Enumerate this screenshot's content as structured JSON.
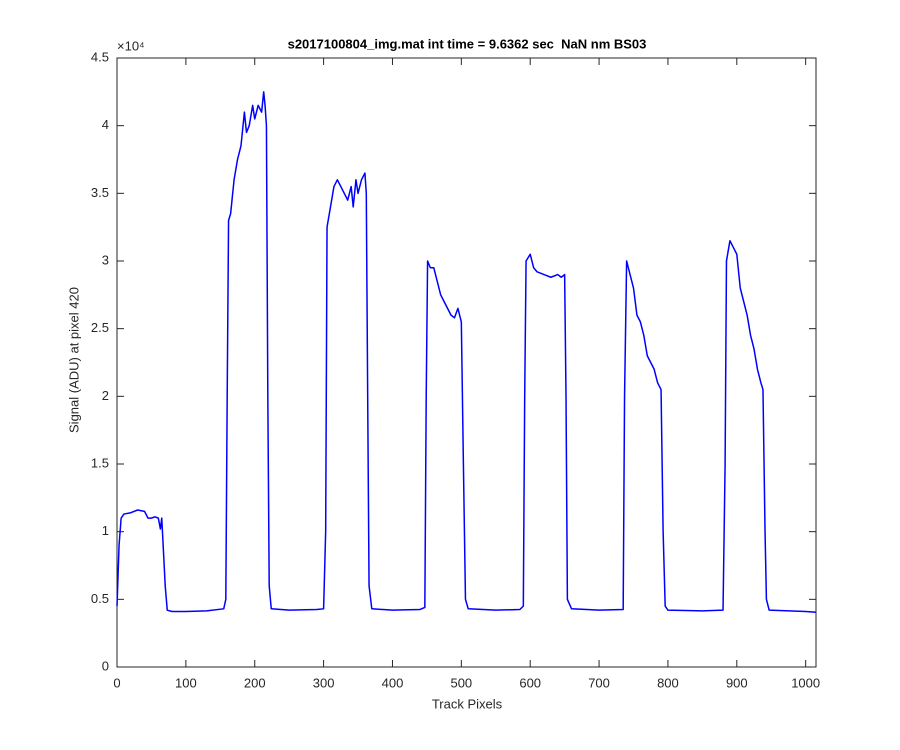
{
  "chart_data": {
    "type": "line",
    "title": "s2017100804_img.mat int time = 9.6362 sec  NaN nm BS03",
    "x_label": "Track Pixels",
    "y_label": "Signal (ADU) at pixel 420",
    "y_exponent_label": "×10⁴",
    "xlim": [
      0,
      1015
    ],
    "ylim": [
      0,
      45000
    ],
    "xticks": [
      0,
      100,
      200,
      300,
      400,
      500,
      600,
      700,
      800,
      900,
      1000
    ],
    "yticks": [
      {
        "value": 0,
        "label": "0"
      },
      {
        "value": 5000,
        "label": "0.5"
      },
      {
        "value": 10000,
        "label": "1"
      },
      {
        "value": 15000,
        "label": "1.5"
      },
      {
        "value": 20000,
        "label": "2"
      },
      {
        "value": 25000,
        "label": "2.5"
      },
      {
        "value": 30000,
        "label": "3"
      },
      {
        "value": 35000,
        "label": "3.5"
      },
      {
        "value": 40000,
        "label": "4"
      },
      {
        "value": 45000,
        "label": "4.5"
      }
    ],
    "grid": false,
    "series": [
      {
        "color": "#0000ff",
        "x": [
          0,
          3,
          6,
          10,
          20,
          30,
          40,
          45,
          50,
          55,
          60,
          63,
          65,
          67,
          70,
          73,
          80,
          100,
          130,
          155,
          158,
          160,
          162,
          165,
          170,
          175,
          180,
          185,
          188,
          192,
          197,
          200,
          205,
          210,
          213,
          215,
          217,
          219,
          221,
          224,
          250,
          290,
          300,
          303,
          305,
          310,
          315,
          320,
          325,
          330,
          335,
          340,
          343,
          347,
          350,
          355,
          360,
          362,
          364,
          366,
          370,
          400,
          440,
          447,
          449,
          451,
          455,
          460,
          465,
          470,
          475,
          480,
          485,
          490,
          495,
          500,
          503,
          506,
          510,
          550,
          585,
          590,
          592,
          594,
          600,
          605,
          610,
          620,
          630,
          640,
          645,
          650,
          652,
          654,
          660,
          700,
          735,
          737,
          740,
          745,
          750,
          755,
          760,
          765,
          770,
          775,
          780,
          785,
          790,
          793,
          796,
          800,
          850,
          880,
          883,
          885,
          890,
          895,
          900,
          905,
          910,
          915,
          920,
          925,
          930,
          935,
          938,
          941,
          943,
          947,
          1000,
          1015
        ],
        "values": [
          4500,
          9000,
          11000,
          11300,
          11400,
          11600,
          11500,
          11000,
          11000,
          11100,
          11000,
          10200,
          11000,
          9000,
          6000,
          4200,
          4100,
          4100,
          4150,
          4300,
          5000,
          20000,
          33000,
          33500,
          36000,
          37500,
          38500,
          41000,
          39500,
          40000,
          41500,
          40500,
          41500,
          41000,
          42500,
          41500,
          40000,
          20000,
          6000,
          4300,
          4200,
          4250,
          4300,
          10000,
          32500,
          34000,
          35500,
          36000,
          35500,
          35000,
          34500,
          35500,
          34000,
          36000,
          35000,
          36000,
          36500,
          35000,
          20000,
          6000,
          4300,
          4200,
          4250,
          4400,
          20000,
          30000,
          29500,
          29500,
          28500,
          27500,
          27000,
          26500,
          26000,
          25800,
          26500,
          25500,
          15000,
          5000,
          4300,
          4200,
          4250,
          4500,
          20000,
          30000,
          30500,
          29500,
          29200,
          29000,
          28800,
          29000,
          28800,
          29000,
          20000,
          5000,
          4300,
          4200,
          4250,
          20000,
          30000,
          29000,
          28000,
          26000,
          25500,
          24500,
          23000,
          22500,
          22000,
          21000,
          20500,
          10000,
          4500,
          4200,
          4150,
          4200,
          15000,
          30000,
          31500,
          31000,
          30500,
          28000,
          27000,
          26000,
          24500,
          23500,
          22000,
          21000,
          20500,
          10000,
          5000,
          4200,
          4100,
          4050
        ]
      }
    ]
  }
}
